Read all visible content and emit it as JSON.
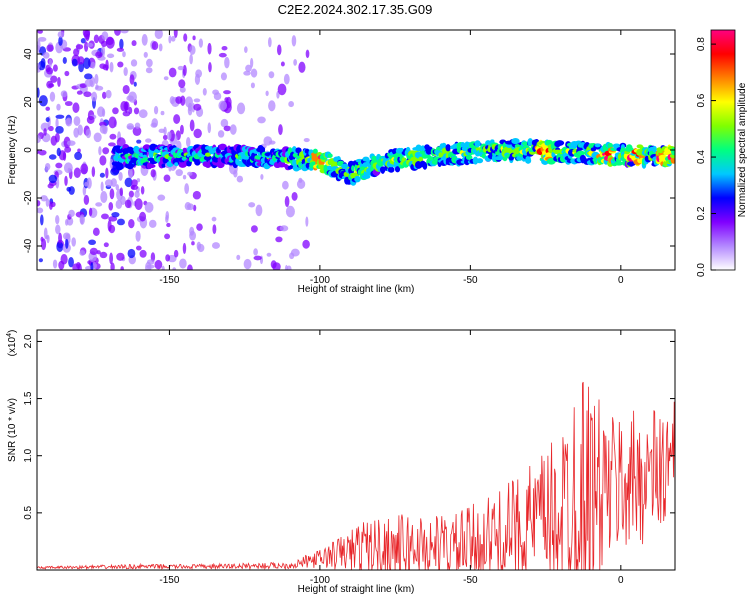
{
  "title": "C2E2.2024.302.17.35.G09",
  "chart_data": [
    {
      "type": "heatmap",
      "xlabel": "Height of straight line (km)",
      "ylabel": "Frequency (Hz)",
      "xlim": [
        -194,
        18
      ],
      "ylim": [
        -50,
        50
      ],
      "xticks": [
        -150,
        -100,
        -50,
        0
      ],
      "yticks": [
        -40,
        -20,
        0,
        20,
        40
      ],
      "colorbar": {
        "label": "Normalized spectral amplitude",
        "range": [
          0,
          0.85
        ],
        "ticks": [
          0.0,
          0.2,
          0.4,
          0.6,
          0.8
        ],
        "colors": [
          "#ffffff",
          "#b388ff",
          "#8000ff",
          "#0000ff",
          "#00c8ff",
          "#00ff80",
          "#80ff00",
          "#ffff00",
          "#ff8000",
          "#ff0000",
          "#ff0080"
        ]
      },
      "ridge": {
        "center_freq_hz": [
          {
            "x": -160,
            "y": -3
          },
          {
            "x": -140,
            "y": -2
          },
          {
            "x": -120,
            "y": -3
          },
          {
            "x": -100,
            "y": -4
          },
          {
            "x": -90,
            "y": -10
          },
          {
            "x": -80,
            "y": -5
          },
          {
            "x": -60,
            "y": -2
          },
          {
            "x": -40,
            "y": 0
          },
          {
            "x": -20,
            "y": -1
          },
          {
            "x": 0,
            "y": -2
          },
          {
            "x": 18,
            "y": -3
          }
        ],
        "peak_amplitude_near_x": [
          -100,
          -25,
          -5,
          5,
          15
        ]
      },
      "grid": false
    },
    {
      "type": "line",
      "xlabel": "Height of straight line (km)",
      "ylabel": "SNR (10 * v/v)",
      "yscale_note": "(x10",
      "yscale_exp": "4",
      "xlim": [
        -194,
        18
      ],
      "ylim": [
        0,
        2.1
      ],
      "xticks": [
        -150,
        -100,
        -50,
        0
      ],
      "yticks": [
        0.5,
        1.0,
        1.5,
        2.0
      ],
      "ytick_labels": [
        "0.5",
        "1.0",
        "1.5",
        "2.0"
      ],
      "series": [
        {
          "color": "#e8262a",
          "envelope": [
            {
              "x": -194,
              "mean": 0.02,
              "amp": 0.01
            },
            {
              "x": -160,
              "mean": 0.03,
              "amp": 0.02
            },
            {
              "x": -140,
              "mean": 0.03,
              "amp": 0.02
            },
            {
              "x": -110,
              "mean": 0.04,
              "amp": 0.03
            },
            {
              "x": -100,
              "mean": 0.1,
              "amp": 0.08
            },
            {
              "x": -85,
              "mean": 0.2,
              "amp": 0.25
            },
            {
              "x": -70,
              "mean": 0.2,
              "amp": 0.3
            },
            {
              "x": -55,
              "mean": 0.2,
              "amp": 0.3
            },
            {
              "x": -40,
              "mean": 0.3,
              "amp": 0.4
            },
            {
              "x": -30,
              "mean": 0.4,
              "amp": 0.55
            },
            {
              "x": -20,
              "mean": 0.5,
              "amp": 0.7
            },
            {
              "x": -15,
              "mean": 0.7,
              "amp": 1.2
            },
            {
              "x": -5,
              "mean": 0.7,
              "amp": 0.7
            },
            {
              "x": 5,
              "mean": 0.8,
              "amp": 0.6
            },
            {
              "x": 18,
              "mean": 0.9,
              "amp": 0.6
            }
          ]
        }
      ],
      "grid": false
    }
  ]
}
